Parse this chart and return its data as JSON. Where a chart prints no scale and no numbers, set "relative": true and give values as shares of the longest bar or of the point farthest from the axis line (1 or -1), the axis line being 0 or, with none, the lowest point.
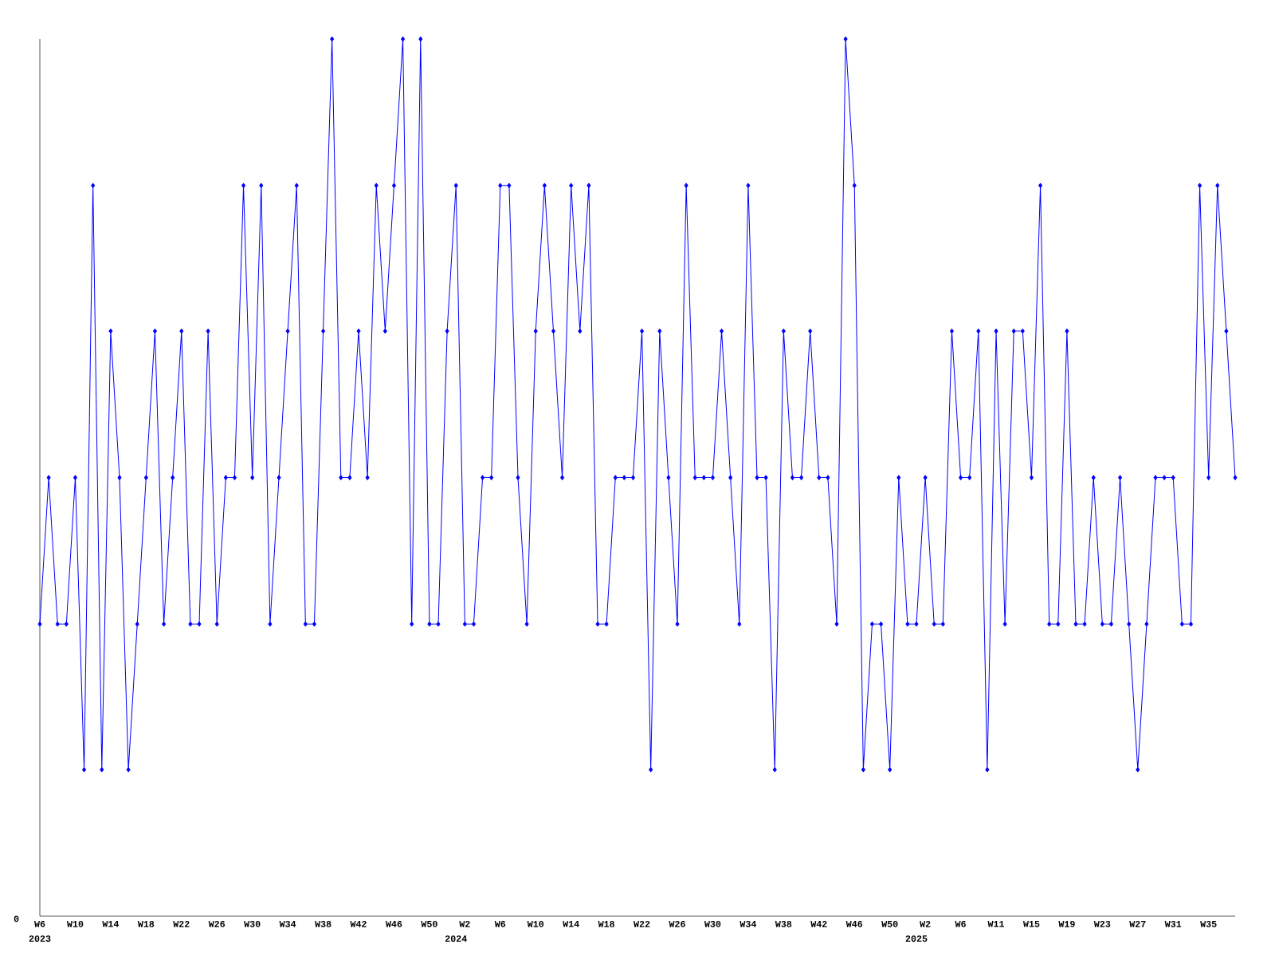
{
  "chart_data": {
    "type": "line",
    "relative": true,
    "marker": "diamond",
    "line_style": "solid",
    "x": [
      "2023-02-06",
      "2023-02-13",
      "2023-02-20",
      "2023-02-27",
      "2023-03-06",
      "2023-03-13",
      "2023-03-20",
      "2023-03-27",
      "2023-04-03",
      "2023-04-10",
      "2023-04-17",
      "2023-04-24",
      "2023-05-01",
      "2023-05-08",
      "2023-05-15",
      "2023-05-22",
      "2023-05-29",
      "2023-06-05",
      "2023-06-12",
      "2023-06-19",
      "2023-06-26",
      "2023-07-03",
      "2023-07-10",
      "2023-07-17",
      "2023-07-24",
      "2023-07-31",
      "2023-08-07",
      "2023-08-14",
      "2023-08-21",
      "2023-08-28",
      "2023-09-04",
      "2023-09-11",
      "2023-09-18",
      "2023-09-25",
      "2023-10-02",
      "2023-10-09",
      "2023-10-16",
      "2023-10-23",
      "2023-10-30",
      "2023-11-06",
      "2023-11-13",
      "2023-11-20",
      "2023-11-27",
      "2023-12-04",
      "2023-12-11",
      "2023-12-18",
      "2023-12-25",
      "2024-01-01",
      "2024-01-08",
      "2024-01-15",
      "2024-01-22",
      "2024-01-29",
      "2024-02-05",
      "2024-02-12",
      "2024-02-19",
      "2024-02-26",
      "2024-03-04",
      "2024-03-11",
      "2024-03-18",
      "2024-03-25",
      "2024-04-01",
      "2024-04-08",
      "2024-04-15",
      "2024-04-22",
      "2024-04-29",
      "2024-05-06",
      "2024-05-13",
      "2024-05-20",
      "2024-05-27",
      "2024-06-03",
      "2024-06-10",
      "2024-06-17",
      "2024-06-24",
      "2024-07-01",
      "2024-07-08",
      "2024-07-15",
      "2024-07-22",
      "2024-07-29",
      "2024-08-05",
      "2024-08-12",
      "2024-08-19",
      "2024-08-26",
      "2024-09-02",
      "2024-09-09",
      "2024-09-16",
      "2024-09-23",
      "2024-09-30",
      "2024-10-07",
      "2024-10-14",
      "2024-10-21",
      "2024-10-28",
      "2024-11-04",
      "2024-11-11",
      "2024-11-18",
      "2024-11-25",
      "2024-12-02",
      "2024-12-09",
      "2024-12-16",
      "2024-12-23",
      "2024-12-30",
      "2025-01-06",
      "2025-01-13",
      "2025-01-20",
      "2025-01-27",
      "2025-02-03",
      "2025-02-10",
      "2025-02-17",
      "2025-02-24",
      "2025-03-03",
      "2025-03-10",
      "2025-03-17",
      "2025-03-24",
      "2025-03-31",
      "2025-04-07",
      "2025-04-14",
      "2025-04-21",
      "2025-04-28",
      "2025-05-05",
      "2025-05-12",
      "2025-05-19",
      "2025-05-26",
      "2025-06-02",
      "2025-06-09",
      "2025-06-16",
      "2025-06-23",
      "2025-06-30",
      "2025-07-07",
      "2025-07-14",
      "2025-07-21",
      "2025-07-28",
      "2025-08-04",
      "2025-08-11",
      "2025-08-18",
      "2025-08-25",
      "2025-09-01",
      "2025-09-08"
    ],
    "series": [
      {
        "color": "#0000ff",
        "values": [
          0.333,
          0.5,
          0.333,
          0.333,
          0.5,
          0.167,
          0.833,
          0.167,
          0.667,
          0.5,
          0.167,
          0.333,
          0.5,
          0.667,
          0.333,
          0.5,
          0.667,
          0.333,
          0.333,
          0.667,
          0.333,
          0.5,
          0.5,
          0.833,
          0.5,
          0.833,
          0.333,
          0.5,
          0.667,
          0.833,
          0.333,
          0.333,
          0.667,
          1,
          0.5,
          0.5,
          0.667,
          0.5,
          0.833,
          0.667,
          0.833,
          1,
          0.333,
          1,
          0.333,
          0.333,
          0.667,
          0.833,
          0.333,
          0.333,
          0.5,
          0.5,
          0.833,
          0.833,
          0.5,
          0.333,
          0.667,
          0.833,
          0.667,
          0.5,
          0.833,
          0.667,
          0.833,
          0.333,
          0.333,
          0.5,
          0.5,
          0.5,
          0.667,
          0.167,
          0.667,
          0.5,
          0.333,
          0.833,
          0.5,
          0.5,
          0.5,
          0.667,
          0.5,
          0.333,
          0.833,
          0.5,
          0.5,
          0.167,
          0.667,
          0.5,
          0.5,
          0.667,
          0.5,
          0.5,
          0.333,
          1,
          0.833,
          0.167,
          0.333,
          0.333,
          0.167,
          0.5,
          0.333,
          0.333,
          0.5,
          0.333,
          0.333,
          0.667,
          0.5,
          0.5,
          0.667,
          0.167,
          0.667,
          0.333,
          0.667,
          0.667,
          0.5,
          0.833,
          0.333,
          0.333,
          0.667,
          0.333,
          0.333,
          0.5,
          0.333,
          0.333,
          0.5,
          0.333,
          0.167,
          0.333,
          0.5,
          0.5,
          0.5,
          0.333,
          0.333,
          0.833,
          0.5,
          0.833,
          0.667,
          0.5
        ]
      }
    ],
    "xlim": [
      "2023-02-06",
      "2025-09-08"
    ],
    "xticks": [
      {
        "value": "2023-02-06",
        "label": "W6"
      },
      {
        "value": "2023-03-06",
        "label": "W10"
      },
      {
        "value": "2023-04-03",
        "label": "W14"
      },
      {
        "value": "2023-05-01",
        "label": "W18"
      },
      {
        "value": "2023-05-29",
        "label": "W22"
      },
      {
        "value": "2023-06-26",
        "label": "W26"
      },
      {
        "value": "2023-07-24",
        "label": "W30"
      },
      {
        "value": "2023-08-21",
        "label": "W34"
      },
      {
        "value": "2023-09-18",
        "label": "W38"
      },
      {
        "value": "2023-10-16",
        "label": "W42"
      },
      {
        "value": "2023-11-13",
        "label": "W46"
      },
      {
        "value": "2023-12-11",
        "label": "W50"
      },
      {
        "value": "2024-01-08",
        "label": "W2"
      },
      {
        "value": "2024-02-05",
        "label": "W6"
      },
      {
        "value": "2024-03-04",
        "label": "W10"
      },
      {
        "value": "2024-04-01",
        "label": "W14"
      },
      {
        "value": "2024-04-29",
        "label": "W18"
      },
      {
        "value": "2024-05-27",
        "label": "W22"
      },
      {
        "value": "2024-06-24",
        "label": "W26"
      },
      {
        "value": "2024-07-22",
        "label": "W30"
      },
      {
        "value": "2024-08-19",
        "label": "W34"
      },
      {
        "value": "2024-09-16",
        "label": "W38"
      },
      {
        "value": "2024-10-14",
        "label": "W42"
      },
      {
        "value": "2024-11-11",
        "label": "W46"
      },
      {
        "value": "2024-12-09",
        "label": "W50"
      },
      {
        "value": "2025-01-06",
        "label": "W2"
      },
      {
        "value": "2025-02-03",
        "label": "W6"
      },
      {
        "value": "2025-03-03",
        "label": "W11"
      },
      {
        "value": "2025-03-31",
        "label": "W15"
      },
      {
        "value": "2025-04-28",
        "label": "W19"
      },
      {
        "value": "2025-05-26",
        "label": "W23"
      },
      {
        "value": "2025-06-23",
        "label": "W27"
      },
      {
        "value": "2025-07-21",
        "label": "W31"
      },
      {
        "value": "2025-08-18",
        "label": "W35"
      }
    ],
    "annotations": [
      "0",
      "2023",
      "2024",
      "2025"
    ]
  }
}
